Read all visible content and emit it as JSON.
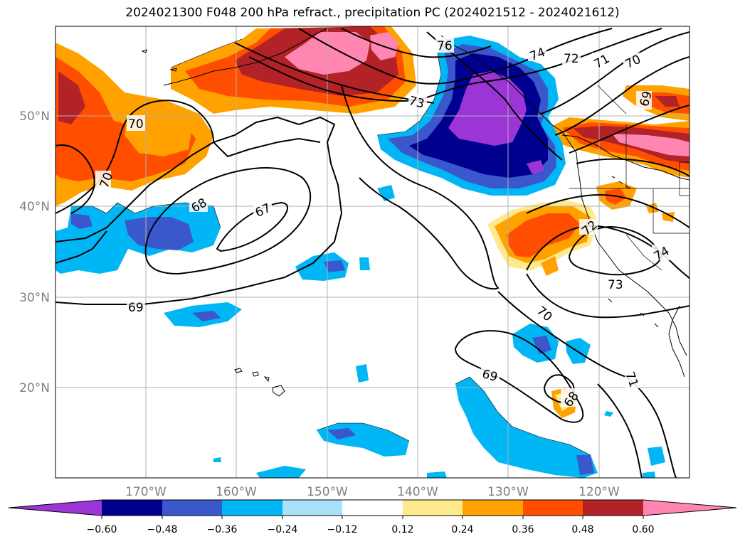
{
  "title": "2024021300 F048 200 hPa refract., precipitation PC (2024021512 - 2024021612)",
  "map": {
    "lat_labels": [
      "50°N",
      "40°N",
      "30°N",
      "20°N"
    ],
    "lon_labels": [
      "170°W",
      "160°W",
      "150°W",
      "140°W",
      "130°W",
      "120°W"
    ],
    "axis_label_color": "#808080",
    "grid_color": "#b0b0b0",
    "contour_labels": [
      "76",
      "74",
      "72",
      "71",
      "70",
      "73",
      "69",
      "70",
      "70",
      "68",
      "67",
      "69",
      "72",
      "74",
      "73",
      "70",
      "69",
      "68",
      "71"
    ]
  },
  "colorbar": {
    "colors": [
      "#9b35d6",
      "#000090",
      "#3a57cc",
      "#00b6f5",
      "#a9e0fa",
      "#ffffff",
      "#feea8d",
      "#ffa200",
      "#ff4e00",
      "#b22226",
      "#ff86b0"
    ],
    "tick_labels": [
      "−0.60",
      "−0.48",
      "−0.36",
      "−0.24",
      "−0.12",
      "0.12",
      "0.24",
      "0.36",
      "0.48",
      "0.60"
    ]
  }
}
